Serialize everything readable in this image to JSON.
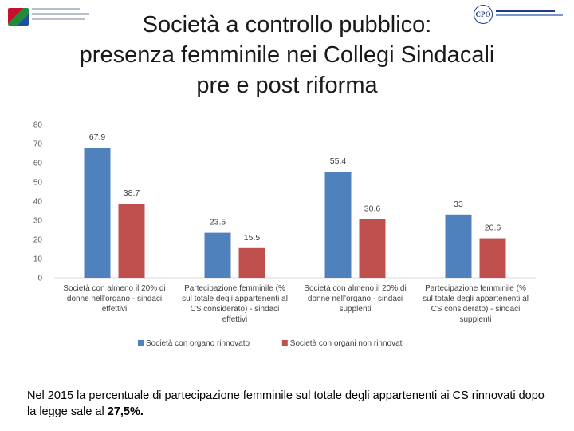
{
  "title": {
    "line1": "Società a controllo pubblico:",
    "line2": "presenza femminile nei Collegi Sindacali",
    "line3": "pre e post riforma"
  },
  "logos": {
    "right_abbrev": "CPO"
  },
  "chart_data": {
    "type": "bar",
    "categories": [
      [
        "Società con almeno il 20% di",
        "donne nell'organo - sindaci",
        "effettivi"
      ],
      [
        "Partecipazione femminile (%",
        "sul totale degli appartenenti al",
        "CS considerato) - sindaci",
        "effettivi"
      ],
      [
        "Società con almeno il 20% di",
        "donne nell'organo - sindaci",
        "supplenti"
      ],
      [
        "Partecipazione femminile (%",
        "sul totale degli appartenenti al",
        "CS considerato) - sindaci",
        "supplenti"
      ]
    ],
    "series": [
      {
        "name": "Società con organo rinnovato",
        "color": "#4f81bd",
        "values": [
          67.9,
          23.5,
          55.4,
          33
        ],
        "labels": [
          "67.9",
          "23.5",
          "55.4",
          "33"
        ]
      },
      {
        "name": "Società con organi non rinnovati",
        "color": "#c0504d",
        "values": [
          38.7,
          15.5,
          30.6,
          20.6
        ],
        "labels": [
          "38.7",
          "15.5",
          "30.6",
          "20.6"
        ]
      }
    ],
    "ylim": [
      0,
      80
    ],
    "yticks": [
      0,
      10,
      20,
      30,
      40,
      50,
      60,
      70,
      80
    ],
    "legend": "bottom",
    "grid": false
  },
  "caption": {
    "text_before": "Nel 2015 la percentuale di partecipazione femminile sul totale degli appartenenti ai CS rinnovati dopo la legge sale al ",
    "bold": "27,5%.",
    "text_after": ""
  }
}
